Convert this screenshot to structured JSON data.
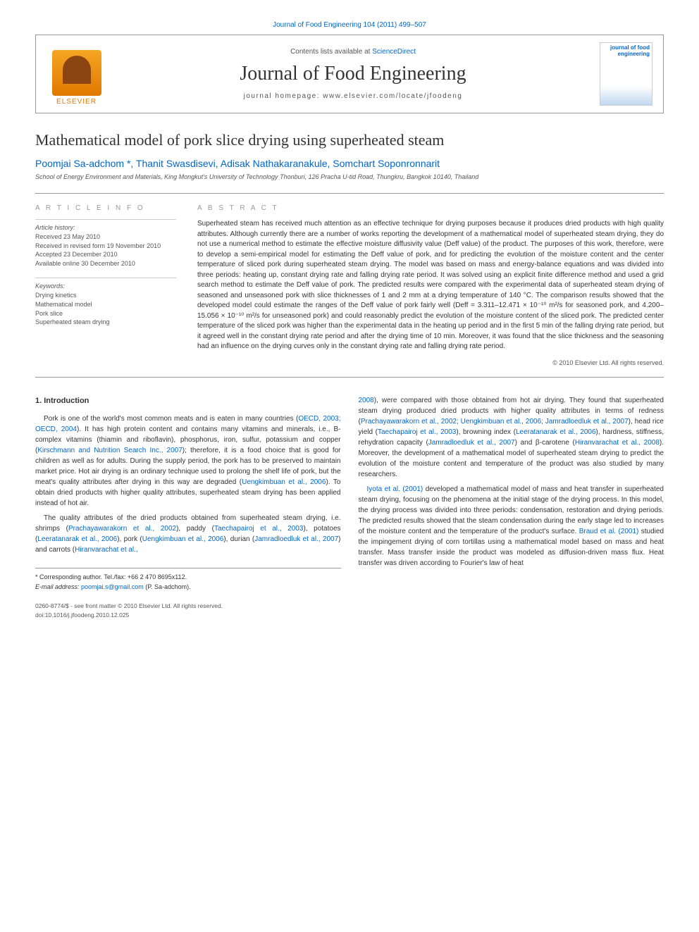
{
  "top_citation": "Journal of Food Engineering 104 (2011) 499–507",
  "header": {
    "elsevier_label": "ELSEVIER",
    "contents_prefix": "Contents lists available at ",
    "contents_link": "ScienceDirect",
    "journal_name": "Journal of Food Engineering",
    "homepage_label": "journal homepage: www.elsevier.com/locate/jfoodeng",
    "jfe_small": "journal of\nfood engineering"
  },
  "article": {
    "title": "Mathematical model of pork slice drying using superheated steam",
    "authors": "Poomjai Sa-adchom *, Thanit Swasdisevi, Adisak Nathakaranakule, Somchart Soponronnarit",
    "affiliation": "School of Energy Environment and Materials, King Mongkut's University of Technology Thonburi, 126 Pracha U-tid Road, Thungkru, Bangkok 10140, Thailand"
  },
  "info": {
    "heading": "A R T I C L E   I N F O",
    "history_label": "Article history:",
    "history": [
      "Received 23 May 2010",
      "Received in revised form 19 November 2010",
      "Accepted 23 December 2010",
      "Available online 30 December 2010"
    ],
    "keywords_label": "Keywords:",
    "keywords": [
      "Drying kinetics",
      "Mathematical model",
      "Pork slice",
      "Superheated steam drying"
    ]
  },
  "abstract": {
    "heading": "A B S T R A C T",
    "text": "Superheated steam has received much attention as an effective technique for drying purposes because it produces dried products with high quality attributes. Although currently there are a number of works reporting the development of a mathematical model of superheated steam drying, they do not use a numerical method to estimate the effective moisture diffusivity value (Deff value) of the product. The purposes of this work, therefore, were to develop a semi-empirical model for estimating the Deff value of pork, and for predicting the evolution of the moisture content and the center temperature of sliced pork during superheated steam drying. The model was based on mass and energy-balance equations and was divided into three periods: heating up, constant drying rate and falling drying rate period. It was solved using an explicit finite difference method and used a grid search method to estimate the Deff value of pork. The predicted results were compared with the experimental data of superheated steam drying of seasoned and unseasoned pork with slice thicknesses of 1 and 2 mm at a drying temperature of 140 °C. The comparison results showed that the developed model could estimate the ranges of the Deff value of pork fairly well (Deff = 3.311–12.471 × 10⁻¹⁰ m²/s for seasoned pork, and 4.200–15.056 × 10⁻¹⁰ m²/s for unseasoned pork) and could reasonably predict the evolution of the moisture content of the sliced pork. The predicted center temperature of the sliced pork was higher than the experimental data in the heating up period and in the first 5 min of the falling drying rate period, but it agreed well in the constant drying rate period and after the drying time of 10 min. Moreover, it was found that the slice thickness and the seasoning had an influence on the drying curves only in the constant drying rate and falling drying rate period.",
    "copyright": "© 2010 Elsevier Ltd. All rights reserved."
  },
  "body": {
    "heading1": "1. Introduction",
    "left_p1_a": "Pork is one of the world's most common meats and is eaten in many countries (",
    "left_p1_cite1": "OECD, 2003; OECD, 2004",
    "left_p1_b": "). It has high protein content and contains many vitamins and minerals, i.e., B-complex vitamins (thiamin and riboflavin), phosphorus, iron, sulfur, potassium and copper (",
    "left_p1_cite2": "Kirschmann and Nutrition Search Inc., 2007",
    "left_p1_c": "); therefore, it is a food choice that is good for children as well as for adults. During the supply period, the pork has to be preserved to maintain market price. Hot air drying is an ordinary technique used to prolong the shelf life of pork, but the meat's quality attributes after drying in this way are degraded (",
    "left_p1_cite3": "Uengkimbuan et al., 2006",
    "left_p1_d": "). To obtain dried products with higher quality attributes, superheated steam drying has been applied instead of hot air.",
    "left_p2_a": "The quality attributes of the dried products obtained from superheated steam drying, i.e. shrimps (",
    "left_p2_cite1": "Prachayawarakorn et al., 2002",
    "left_p2_b": "), paddy (",
    "left_p2_cite2": "Taechapairoj et al., 2003",
    "left_p2_c": "), potatoes (",
    "left_p2_cite3": "Leeratanarak et al., 2006",
    "left_p2_d": "), pork (",
    "left_p2_cite4": "Uengkimbuan et al., 2006",
    "left_p2_e": "), durian (",
    "left_p2_cite5": "Jamradloedluk et al., 2007",
    "left_p2_f": ") and carrots (",
    "left_p2_cite6": "Hiranvarachat et al.,",
    "right_p1_cite0": "2008",
    "right_p1_a": "), were compared with those obtained from hot air drying. They found that superheated steam drying produced dried products with higher quality attributes in terms of redness (",
    "right_p1_cite1": "Prachayawarakorn et al., 2002; Uengkimbuan et al., 2006; Jamradloedluk et al., 2007",
    "right_p1_b": "), head rice yield (",
    "right_p1_cite2": "Taechapairoj et al., 2003",
    "right_p1_c": "), browning index (",
    "right_p1_cite3": "Leeratanarak et al., 2006",
    "right_p1_d": "), hardness, stiffness, rehydration capacity (",
    "right_p1_cite4": "Jamradloedluk et al., 2007",
    "right_p1_e": ") and β-carotene (",
    "right_p1_cite5": "Hiranvarachat et al., 2008",
    "right_p1_f": "). Moreover, the development of a mathematical model of superheated steam drying to predict the evolution of the moisture content and temperature of the product was also studied by many researchers.",
    "right_p2_cite0": "Iyota et al. (2001)",
    "right_p2_a": " developed a mathematical model of mass and heat transfer in superheated steam drying, focusing on the phenomena at the initial stage of the drying process. In this model, the drying process was divided into three periods: condensation, restoration and drying periods. The predicted results showed that the steam condensation during the early stage led to increases of the moisture content and the temperature of the product's surface. ",
    "right_p2_cite1": "Braud et al. (2001)",
    "right_p2_b": " studied the impingement drying of corn tortillas using a mathematical model based on mass and heat transfer. Mass transfer inside the product was modeled as diffusion-driven mass flux. Heat transfer was driven according to Fourier's law of heat"
  },
  "corr": {
    "line1": "* Corresponding author. Tel./fax: +66 2 470 8695x112.",
    "email_label": "E-mail address: ",
    "email": "poomjai.s@gmail.com",
    "email_suffix": " (P. Sa-adchom)."
  },
  "footer": {
    "line1": "0260-8774/$ - see front matter © 2010 Elsevier Ltd. All rights reserved.",
    "line2": "doi:10.1016/j.jfoodeng.2010.12.025"
  },
  "colors": {
    "link": "#0066cc",
    "elsevier_orange": "#e07800",
    "text_gray": "#555555",
    "border_gray": "#999999"
  },
  "typography": {
    "title_fontsize": 22,
    "journal_name_fontsize": 28,
    "authors_fontsize": 14,
    "body_fontsize": 10,
    "abstract_fontsize": 10,
    "affiliation_fontsize": 9
  }
}
